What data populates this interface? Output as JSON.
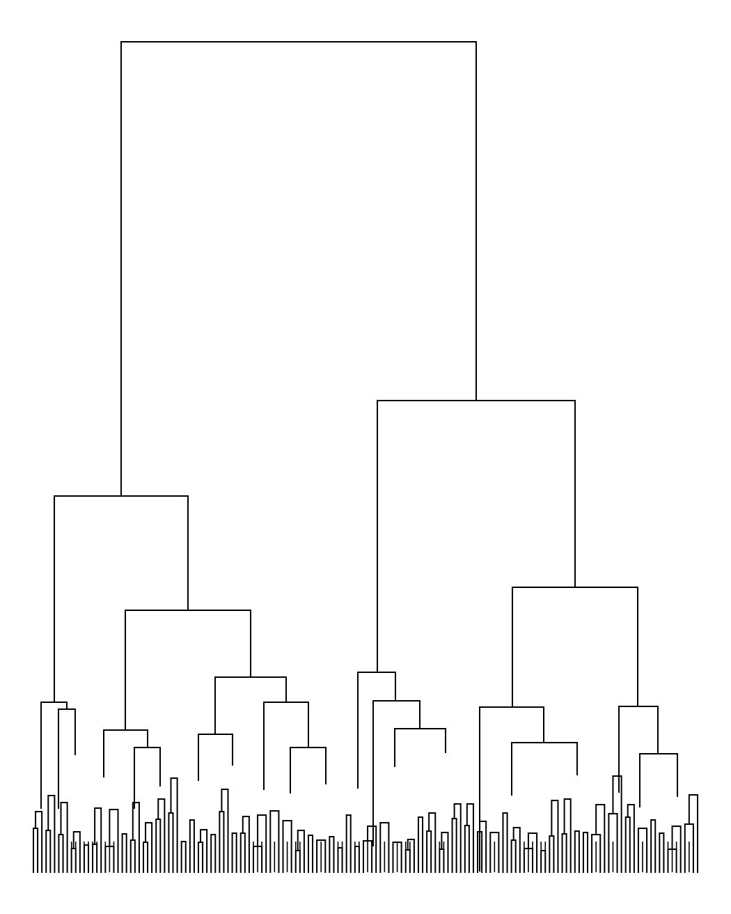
{
  "diagram": {
    "type": "dendrogram",
    "orientation": "top-down",
    "line_color": "#000000",
    "background": "#ffffff",
    "leaf_labels_shown": false,
    "axes_shown": false,
    "leaf_count_estimate": 158,
    "relative_merge_heights": {
      "root": 1.0,
      "left_main_cluster": 0.45,
      "right_main_cluster": 0.57,
      "right_sub_cluster": 0.32
    }
  }
}
